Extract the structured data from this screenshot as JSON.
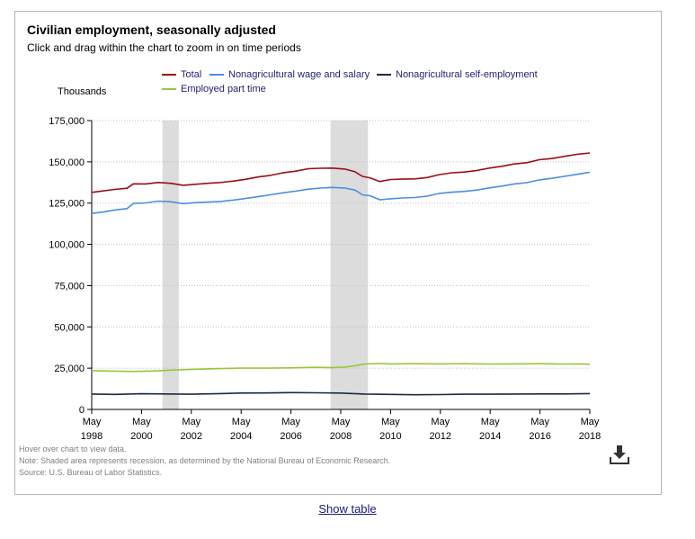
{
  "chart_data": {
    "type": "line",
    "title": "Civilian employment, seasonally adjusted",
    "subtitle": "Click and drag within the chart to zoom in on time periods",
    "ylabel": "Thousands",
    "xlabel": "",
    "ylim": [
      0,
      175000
    ],
    "yticks": [
      "0",
      "25,000",
      "50,000",
      "75,000",
      "100,000",
      "125,000",
      "150,000",
      "175,000"
    ],
    "ytick_values": [
      0,
      25000,
      50000,
      75000,
      100000,
      125000,
      150000,
      175000
    ],
    "xlim": [
      1998.33,
      2018.33
    ],
    "xticks": [
      {
        "month": "May",
        "year": "1998",
        "value": 1998.33
      },
      {
        "month": "May",
        "year": "2000",
        "value": 2000.33
      },
      {
        "month": "May",
        "year": "2002",
        "value": 2002.33
      },
      {
        "month": "May",
        "year": "2004",
        "value": 2004.33
      },
      {
        "month": "May",
        "year": "2006",
        "value": 2006.33
      },
      {
        "month": "May",
        "year": "2008",
        "value": 2008.33
      },
      {
        "month": "May",
        "year": "2010",
        "value": 2010.33
      },
      {
        "month": "May",
        "year": "2012",
        "value": 2012.33
      },
      {
        "month": "May",
        "year": "2014",
        "value": 2014.33
      },
      {
        "month": "May",
        "year": "2016",
        "value": 2016.33
      },
      {
        "month": "May",
        "year": "2018",
        "value": 2018.33
      }
    ],
    "grid": "horizontal-dotted",
    "legend_position": "top",
    "recessions": [
      {
        "start": 2001.17,
        "end": 2001.83
      },
      {
        "start": 2007.92,
        "end": 2009.42
      }
    ],
    "series": [
      {
        "name": "Total",
        "color": "#9a0f12",
        "x": [
          1998.33,
          1998.75,
          1999.25,
          1999.75,
          2000.0,
          2000.5,
          2001.0,
          2001.5,
          2002.0,
          2002.5,
          2003.0,
          2003.5,
          2004.0,
          2004.5,
          2005.0,
          2005.5,
          2006.0,
          2006.5,
          2007.0,
          2007.5,
          2008.0,
          2008.5,
          2008.9,
          2009.2,
          2009.5,
          2009.9,
          2010.33,
          2010.8,
          2011.3,
          2011.8,
          2012.3,
          2012.8,
          2013.3,
          2013.8,
          2014.3,
          2014.8,
          2015.3,
          2015.8,
          2016.3,
          2016.8,
          2017.3,
          2017.8,
          2018.33
        ],
        "y": [
          131500,
          132300,
          133300,
          134000,
          136700,
          136600,
          137500,
          137000,
          135800,
          136400,
          137000,
          137500,
          138300,
          139400,
          140800,
          141800,
          143300,
          144300,
          145800,
          146100,
          146200,
          145600,
          144000,
          141200,
          140300,
          138100,
          139300,
          139500,
          139700,
          140500,
          142300,
          143400,
          143800,
          144800,
          146200,
          147300,
          148700,
          149500,
          151300,
          152000,
          153300,
          154500,
          155400
        ]
      },
      {
        "name": "Nonagricultural wage and salary",
        "color": "#4a8fdf",
        "x": [
          1998.33,
          1998.75,
          1999.25,
          1999.75,
          2000.0,
          2000.5,
          2001.0,
          2001.5,
          2002.0,
          2002.5,
          2003.0,
          2003.5,
          2004.0,
          2004.5,
          2005.0,
          2005.5,
          2006.0,
          2006.5,
          2007.0,
          2007.5,
          2008.0,
          2008.5,
          2008.9,
          2009.2,
          2009.5,
          2009.9,
          2010.33,
          2010.8,
          2011.3,
          2011.8,
          2012.3,
          2012.8,
          2013.3,
          2013.8,
          2014.3,
          2014.8,
          2015.3,
          2015.8,
          2016.3,
          2016.8,
          2017.3,
          2017.8,
          2018.33
        ],
        "y": [
          118800,
          119500,
          120800,
          121700,
          124800,
          125100,
          126200,
          125800,
          124700,
          125300,
          125600,
          126000,
          126800,
          127800,
          128900,
          130000,
          131200,
          132200,
          133400,
          134100,
          134500,
          134100,
          132900,
          130000,
          129500,
          127000,
          127600,
          128100,
          128400,
          129200,
          130900,
          131600,
          132100,
          132900,
          134200,
          135300,
          136600,
          137400,
          139100,
          140000,
          141200,
          142400,
          143700
        ]
      },
      {
        "name": "Nonagricultural self-employment",
        "color": "#1a2a44",
        "x": [
          1998.33,
          1999.3,
          2000.3,
          2001.3,
          2002.3,
          2003.3,
          2004.3,
          2005.3,
          2006.3,
          2007.3,
          2008.3,
          2009.3,
          2010.3,
          2011.3,
          2012.3,
          2013.3,
          2014.3,
          2015.3,
          2016.3,
          2017.3,
          2018.33
        ],
        "y": [
          9300,
          9100,
          9500,
          9400,
          9200,
          9500,
          9900,
          10000,
          10200,
          10100,
          9900,
          9300,
          9100,
          8900,
          9000,
          9200,
          9200,
          9300,
          9400,
          9400,
          9600
        ]
      },
      {
        "name": "Employed part time",
        "color": "#9cc43a",
        "x": [
          1998.33,
          1999.0,
          2000.0,
          2000.8,
          2001.5,
          2002.3,
          2003.3,
          2004.3,
          2005.3,
          2006.3,
          2007.3,
          2007.9,
          2008.5,
          2008.9,
          2009.3,
          2009.8,
          2010.33,
          2011.3,
          2012.3,
          2013.3,
          2014.3,
          2015.3,
          2016.3,
          2017.3,
          2018.0,
          2018.33
        ],
        "y": [
          23500,
          23300,
          23000,
          23300,
          23800,
          24200,
          24700,
          25000,
          25000,
          25200,
          25500,
          25300,
          25700,
          26500,
          27500,
          27800,
          27600,
          27700,
          27600,
          27700,
          27500,
          27600,
          27700,
          27500,
          27600,
          27300
        ]
      }
    ]
  },
  "notes": [
    "Hover over chart to view data.",
    "Note: Shaded area represents recession, as determined by the National Bureau of Economic Research.",
    "Source: U.S. Bureau of Labor Statistics."
  ],
  "download_icon": "download-icon",
  "show_table_label": "Show table"
}
